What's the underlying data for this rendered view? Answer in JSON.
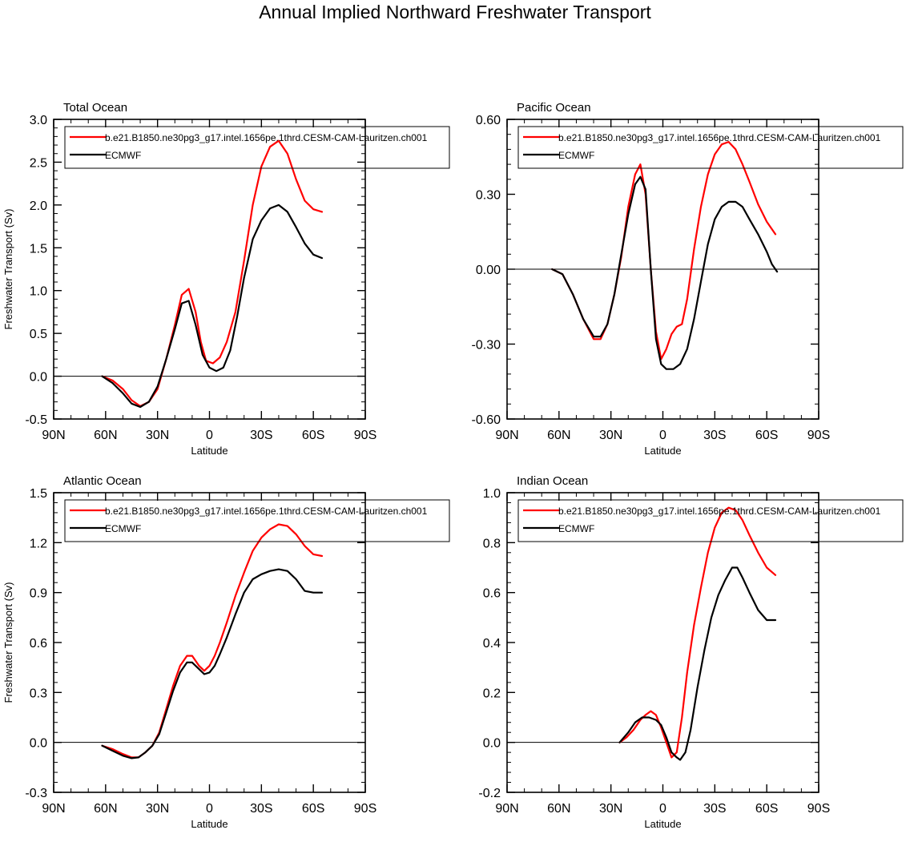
{
  "figure": {
    "title": "Annual Implied Northward Freshwater Transport"
  },
  "colors": {
    "model": "#ff0000",
    "obs": "#000000"
  },
  "chart_data": [
    {
      "type": "line",
      "title": "Total Ocean",
      "xlabel": "Latitude",
      "ylabel": "Freshwater Transport (Sv)",
      "xlim": [
        90,
        -90
      ],
      "ylim": [
        -0.5,
        3.0
      ],
      "yticks": [
        -0.5,
        0.0,
        0.5,
        1.0,
        1.5,
        2.0,
        2.5,
        3.0
      ],
      "yticklabels": [
        "-0.5",
        "0.0",
        "0.5",
        "1.0",
        "1.5",
        "2.0",
        "2.5",
        "3.0"
      ],
      "xticks": [
        90,
        60,
        30,
        0,
        -30,
        -60,
        -90
      ],
      "xticklabels": [
        "90N",
        "60N",
        "30N",
        "0",
        "30S",
        "60S",
        "90S"
      ],
      "zero_line": true,
      "legend_position": "top",
      "series": [
        {
          "name": "b.e21.B1850.ne30pg3_g17.intel.1656pe.1thrd.CESM-CAM-Lauritzen.ch001",
          "color": "#ff0000",
          "x": [
            62,
            56,
            50,
            45,
            40,
            35,
            30,
            25,
            20,
            16,
            12,
            8,
            5,
            2,
            -2,
            -6,
            -10,
            -15,
            -20,
            -25,
            -30,
            -35,
            -40,
            -45,
            -50,
            -55,
            -60,
            -65
          ],
          "y": [
            0.0,
            -0.05,
            -0.15,
            -0.28,
            -0.35,
            -0.3,
            -0.15,
            0.2,
            0.6,
            0.95,
            1.02,
            0.75,
            0.4,
            0.18,
            0.15,
            0.22,
            0.4,
            0.75,
            1.35,
            2.0,
            2.45,
            2.68,
            2.75,
            2.6,
            2.3,
            2.05,
            1.95,
            1.92
          ]
        },
        {
          "name": "ECMWF",
          "color": "#000000",
          "x": [
            62,
            56,
            50,
            45,
            40,
            35,
            30,
            25,
            20,
            16,
            12,
            8,
            4,
            0,
            -4,
            -8,
            -12,
            -16,
            -20,
            -25,
            -30,
            -35,
            -40,
            -45,
            -50,
            -55,
            -60,
            -65
          ],
          "y": [
            0.0,
            -0.08,
            -0.2,
            -0.32,
            -0.36,
            -0.3,
            -0.12,
            0.2,
            0.55,
            0.85,
            0.88,
            0.6,
            0.25,
            0.1,
            0.06,
            0.1,
            0.3,
            0.7,
            1.15,
            1.6,
            1.82,
            1.96,
            2.0,
            1.92,
            1.74,
            1.55,
            1.42,
            1.38
          ]
        }
      ]
    },
    {
      "type": "line",
      "title": "Pacific Ocean",
      "xlabel": "Latitude",
      "ylabel": "",
      "xlim": [
        90,
        -90
      ],
      "ylim": [
        -0.6,
        0.6
      ],
      "yticks": [
        -0.6,
        -0.3,
        0.0,
        0.3,
        0.6
      ],
      "yticklabels": [
        "-0.60",
        "-0.30",
        "0.00",
        "0.30",
        "0.60"
      ],
      "xticks": [
        90,
        60,
        30,
        0,
        -30,
        -60,
        -90
      ],
      "xticklabels": [
        "90N",
        "60N",
        "30N",
        "0",
        "30S",
        "60S",
        "90S"
      ],
      "zero_line": true,
      "legend_position": "top",
      "series": [
        {
          "name": "b.e21.B1850.ne30pg3_g17.intel.1656pe.1thrd.CESM-CAM-Lauritzen.ch001",
          "color": "#ff0000",
          "x": [
            64,
            58,
            52,
            46,
            40,
            36,
            32,
            28,
            24,
            20,
            16,
            13,
            10,
            7,
            4,
            1,
            -2,
            -5,
            -8,
            -11,
            -14,
            -18,
            -22,
            -26,
            -30,
            -34,
            -38,
            -42,
            -46,
            -50,
            -55,
            -60,
            -65
          ],
          "y": [
            0.0,
            -0.02,
            -0.1,
            -0.2,
            -0.28,
            -0.28,
            -0.22,
            -0.1,
            0.05,
            0.25,
            0.38,
            0.42,
            0.3,
            0.0,
            -0.25,
            -0.36,
            -0.32,
            -0.26,
            -0.23,
            -0.22,
            -0.12,
            0.08,
            0.25,
            0.38,
            0.46,
            0.5,
            0.51,
            0.48,
            0.42,
            0.35,
            0.26,
            0.19,
            0.14
          ]
        },
        {
          "name": "ECMWF",
          "color": "#000000",
          "x": [
            64,
            58,
            52,
            46,
            40,
            36,
            32,
            28,
            24,
            20,
            16,
            13,
            10,
            7,
            4,
            1,
            -2,
            -6,
            -10,
            -14,
            -18,
            -22,
            -26,
            -30,
            -34,
            -38,
            -42,
            -46,
            -50,
            -55,
            -60,
            -63,
            -66
          ],
          "y": [
            0.0,
            -0.02,
            -0.1,
            -0.2,
            -0.27,
            -0.27,
            -0.22,
            -0.1,
            0.06,
            0.22,
            0.34,
            0.37,
            0.32,
            0.0,
            -0.28,
            -0.38,
            -0.4,
            -0.4,
            -0.38,
            -0.32,
            -0.2,
            -0.05,
            0.1,
            0.2,
            0.25,
            0.27,
            0.27,
            0.25,
            0.2,
            0.14,
            0.07,
            0.02,
            -0.01
          ]
        }
      ]
    },
    {
      "type": "line",
      "title": "Atlantic Ocean",
      "xlabel": "Latitude",
      "ylabel": "Freshwater Transport (Sv)",
      "xlim": [
        90,
        -90
      ],
      "ylim": [
        -0.3,
        1.5
      ],
      "yticks": [
        -0.3,
        0.0,
        0.3,
        0.6,
        0.9,
        1.2,
        1.5
      ],
      "yticklabels": [
        "-0.3",
        "0.0",
        "0.3",
        "0.6",
        "0.9",
        "1.2",
        "1.5"
      ],
      "xticks": [
        90,
        60,
        30,
        0,
        -30,
        -60,
        -90
      ],
      "xticklabels": [
        "90N",
        "60N",
        "30N",
        "0",
        "30S",
        "60S",
        "90S"
      ],
      "zero_line": true,
      "legend_position": "top",
      "series": [
        {
          "name": "b.e21.B1850.ne30pg3_g17.intel.1656pe.1thrd.CESM-CAM-Lauritzen.ch001",
          "color": "#ff0000",
          "x": [
            62,
            56,
            50,
            45,
            41,
            37,
            33,
            29,
            25,
            21,
            17,
            13,
            10,
            6,
            3,
            0,
            -3,
            -6,
            -10,
            -15,
            -20,
            -25,
            -30,
            -35,
            -40,
            -45,
            -50,
            -55,
            -60,
            -65
          ],
          "y": [
            -0.02,
            -0.04,
            -0.07,
            -0.09,
            -0.09,
            -0.06,
            -0.02,
            0.06,
            0.2,
            0.34,
            0.46,
            0.52,
            0.52,
            0.46,
            0.43,
            0.46,
            0.52,
            0.6,
            0.72,
            0.88,
            1.02,
            1.15,
            1.23,
            1.28,
            1.31,
            1.3,
            1.25,
            1.18,
            1.13,
            1.12
          ]
        },
        {
          "name": "ECMWF",
          "color": "#000000",
          "x": [
            62,
            56,
            50,
            45,
            41,
            37,
            33,
            29,
            25,
            21,
            17,
            13,
            10,
            6,
            3,
            0,
            -3,
            -6,
            -10,
            -15,
            -20,
            -25,
            -30,
            -35,
            -40,
            -45,
            -50,
            -55,
            -60,
            -65
          ],
          "y": [
            -0.02,
            -0.05,
            -0.08,
            -0.095,
            -0.09,
            -0.06,
            -0.02,
            0.05,
            0.18,
            0.31,
            0.42,
            0.48,
            0.48,
            0.44,
            0.41,
            0.42,
            0.46,
            0.53,
            0.63,
            0.77,
            0.9,
            0.98,
            1.01,
            1.03,
            1.04,
            1.03,
            0.98,
            0.91,
            0.9,
            0.9
          ]
        }
      ]
    },
    {
      "type": "line",
      "title": "Indian Ocean",
      "xlabel": "Latitude",
      "ylabel": "",
      "xlim": [
        90,
        -90
      ],
      "ylim": [
        -0.2,
        1.0
      ],
      "yticks": [
        -0.2,
        0.0,
        0.2,
        0.4,
        0.6,
        0.8,
        1.0
      ],
      "yticklabels": [
        "-0.2",
        "0.0",
        "0.2",
        "0.4",
        "0.6",
        "0.8",
        "1.0"
      ],
      "xticks": [
        90,
        60,
        30,
        0,
        -30,
        -60,
        -90
      ],
      "xticklabels": [
        "90N",
        "60N",
        "30N",
        "0",
        "30S",
        "60S",
        "90S"
      ],
      "zero_line": true,
      "legend_position": "top",
      "series": [
        {
          "name": "b.e21.B1850.ne30pg3_g17.intel.1656pe.1thrd.CESM-CAM-Lauritzen.ch001",
          "color": "#ff0000",
          "x": [
            25,
            21,
            17,
            13,
            10,
            7,
            4,
            1,
            -2,
            -5,
            -8,
            -11,
            -14,
            -18,
            -22,
            -26,
            -30,
            -34,
            -38,
            -42,
            -46,
            -50,
            -55,
            -60,
            -65
          ],
          "y": [
            0.0,
            0.02,
            0.05,
            0.09,
            0.11,
            0.125,
            0.11,
            0.06,
            0.0,
            -0.06,
            -0.04,
            0.1,
            0.28,
            0.47,
            0.62,
            0.76,
            0.86,
            0.92,
            0.94,
            0.93,
            0.89,
            0.83,
            0.76,
            0.7,
            0.67
          ]
        },
        {
          "name": "ECMWF",
          "color": "#000000",
          "x": [
            25,
            20,
            16,
            12,
            8,
            4,
            1,
            -2,
            -5,
            -8,
            -10,
            -13,
            -16,
            -20,
            -24,
            -28,
            -32,
            -36,
            -40,
            -43,
            -46,
            -50,
            -55,
            -60,
            -65
          ],
          "y": [
            0.0,
            0.04,
            0.08,
            0.1,
            0.1,
            0.09,
            0.07,
            0.02,
            -0.04,
            -0.06,
            -0.07,
            -0.04,
            0.05,
            0.22,
            0.37,
            0.5,
            0.59,
            0.65,
            0.7,
            0.7,
            0.66,
            0.6,
            0.53,
            0.49,
            0.49
          ]
        }
      ]
    }
  ]
}
